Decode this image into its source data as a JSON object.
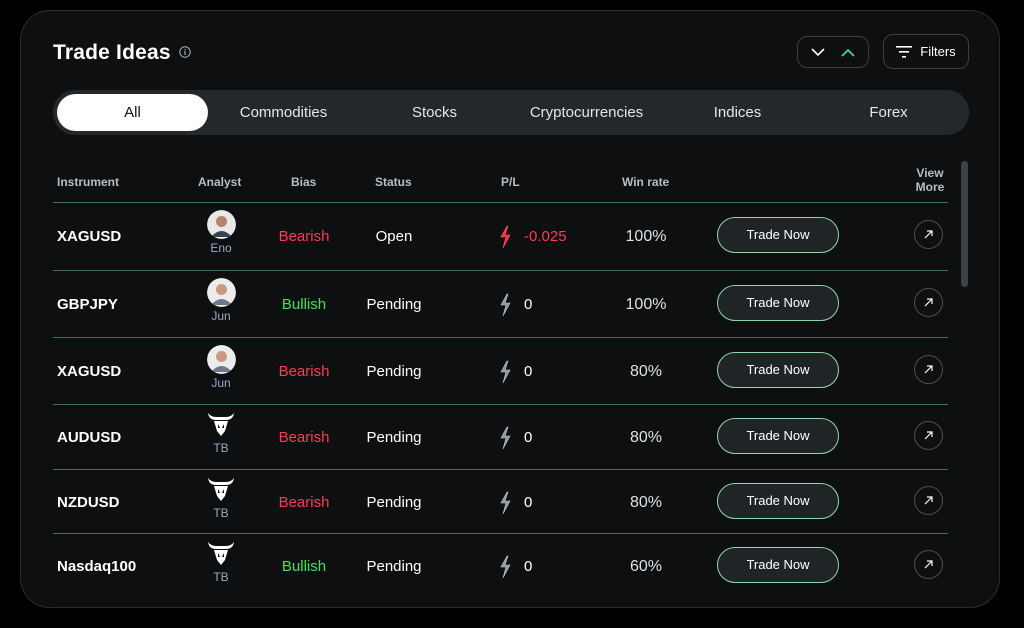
{
  "header": {
    "title": "Trade Ideas",
    "filters_label": "Filters"
  },
  "tabs": [
    {
      "label": "All",
      "active": true
    },
    {
      "label": "Commodities",
      "active": false
    },
    {
      "label": "Stocks",
      "active": false
    },
    {
      "label": "Cryptocurrencies",
      "active": false
    },
    {
      "label": "Indices",
      "active": false
    },
    {
      "label": "Forex",
      "active": false
    }
  ],
  "table": {
    "columns": {
      "instrument": "Instrument",
      "analyst": "Analyst",
      "bias": "Bias",
      "status": "Status",
      "pl": "P/L",
      "win_rate": "Win rate",
      "view_more_1": "View",
      "view_more_2": "More"
    },
    "trade_now_label": "Trade Now",
    "rows": [
      {
        "instrument": "XAGUSD",
        "analyst": "Eno",
        "analyst_icon": "person-avatar",
        "bias": "Bearish",
        "status": "Open",
        "pl": "-0.025",
        "win_rate": "100%"
      },
      {
        "instrument": "GBPJPY",
        "analyst": "Jun",
        "analyst_icon": "person-avatar",
        "bias": "Bullish",
        "status": "Pending",
        "pl": "0",
        "win_rate": "100%"
      },
      {
        "instrument": "XAGUSD",
        "analyst": "Jun",
        "analyst_icon": "person-avatar",
        "bias": "Bearish",
        "status": "Pending",
        "pl": "0",
        "win_rate": "80%"
      },
      {
        "instrument": "AUDUSD",
        "analyst": "TB",
        "analyst_icon": "bull-logo",
        "bias": "Bearish",
        "status": "Pending",
        "pl": "0",
        "win_rate": "80%"
      },
      {
        "instrument": "NZDUSD",
        "analyst": "TB",
        "analyst_icon": "bull-logo",
        "bias": "Bearish",
        "status": "Pending",
        "pl": "0",
        "win_rate": "80%"
      },
      {
        "instrument": "Nasdaq100",
        "analyst": "TB",
        "analyst_icon": "bull-logo",
        "bias": "Bullish",
        "status": "Pending",
        "pl": "0",
        "win_rate": "60%"
      }
    ]
  },
  "colors": {
    "bearish": "#ff3b55",
    "bullish": "#3ee55c",
    "trade_button_border": "#8fd8a8",
    "divider": "#3f7060",
    "sort_up_arrow": "#3ee5a0"
  }
}
